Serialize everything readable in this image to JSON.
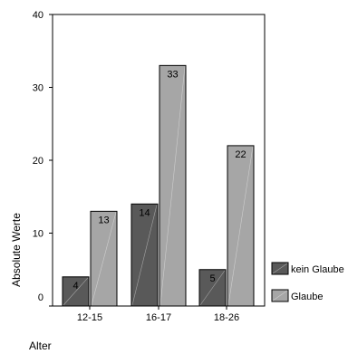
{
  "chart_data": {
    "type": "bar",
    "categories": [
      "12-15",
      "16-17",
      "18-26"
    ],
    "series": [
      {
        "name": "kein Glaube",
        "values": [
          4,
          14,
          5
        ],
        "color": "#595959"
      },
      {
        "name": "Glaube",
        "values": [
          13,
          33,
          22
        ],
        "color": "#a6a6a6"
      }
    ],
    "xlabel": "Alter",
    "ylabel": "Absolute Werte",
    "ylim": [
      0,
      40
    ],
    "yticks": [
      0,
      10,
      20,
      30,
      40
    ],
    "grid": false,
    "legend_position": "right"
  }
}
